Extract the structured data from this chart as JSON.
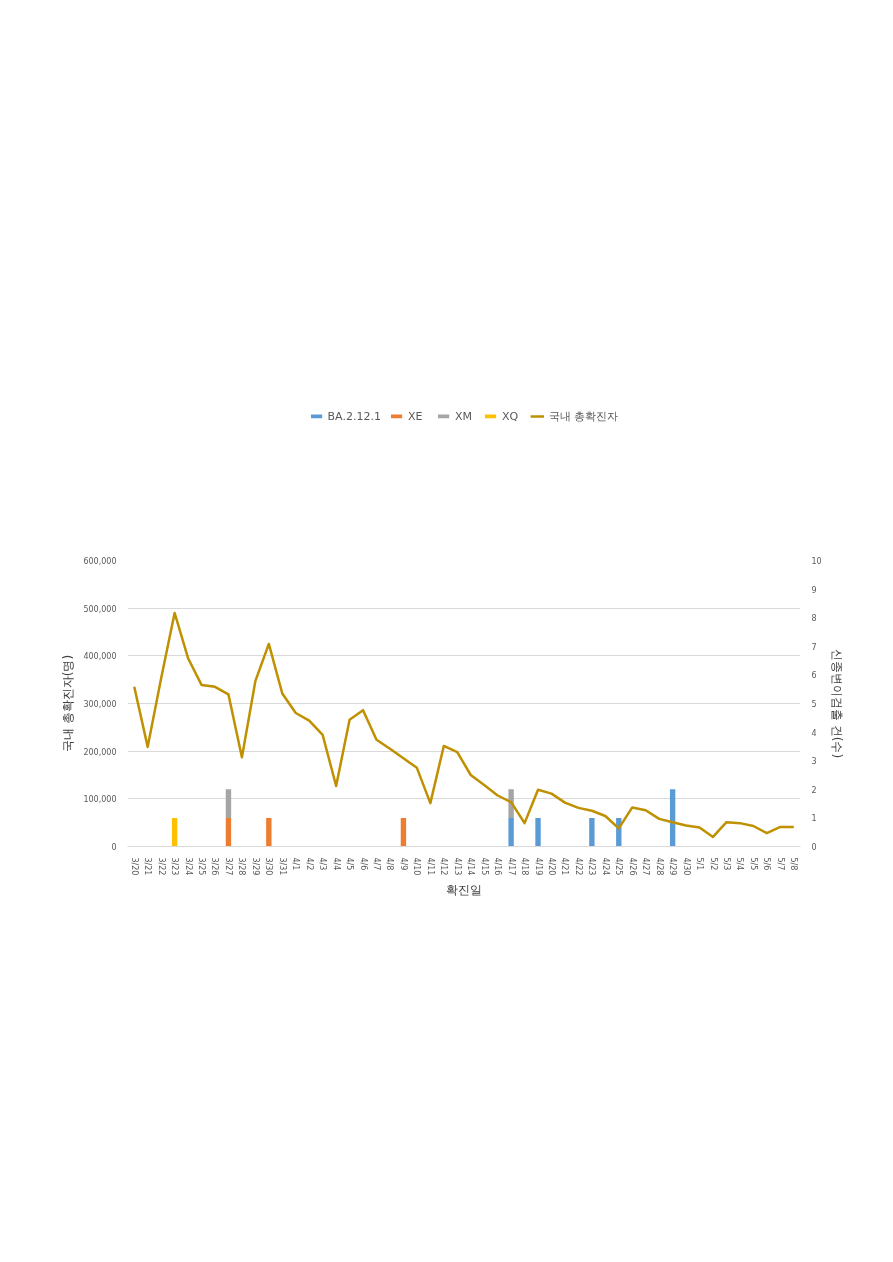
{
  "chart_data": {
    "type": "bar",
    "stacked": true,
    "xlabel": "확진일",
    "ylabel": "국내 총확진자(명)",
    "y2label": "신종변이검출 건(수)",
    "categories": [
      "3/20",
      "3/21",
      "3/22",
      "3/23",
      "3/24",
      "3/25",
      "3/26",
      "3/27",
      "3/28",
      "3/29",
      "3/30",
      "3/31",
      "4/1",
      "4/2",
      "4/3",
      "4/4",
      "4/5",
      "4/6",
      "4/7",
      "4/8",
      "4/9",
      "4/10",
      "4/11",
      "4/12",
      "4/13",
      "4/14",
      "4/15",
      "4/16",
      "4/17",
      "4/18",
      "4/19",
      "4/20",
      "4/21",
      "4/22",
      "4/23",
      "4/24",
      "4/25",
      "4/26",
      "4/27",
      "4/28",
      "4/29",
      "4/30",
      "5/1",
      "5/2",
      "5/3",
      "5/4",
      "5/5",
      "5/6",
      "5/7",
      "5/8"
    ],
    "series": [
      {
        "name": "BA.2.12.1",
        "color": "#5b9bd5",
        "axis": "y2",
        "values": [
          0,
          0,
          0,
          0,
          0,
          0,
          0,
          0,
          0,
          0,
          0,
          0,
          0,
          0,
          0,
          0,
          0,
          0,
          0,
          0,
          0,
          0,
          0,
          0,
          0,
          0,
          0,
          0,
          1,
          0,
          1,
          0,
          0,
          0,
          1,
          0,
          1,
          0,
          0,
          0,
          2,
          0,
          0,
          0,
          0,
          0,
          0,
          0,
          0,
          0
        ]
      },
      {
        "name": "XE",
        "color": "#ed7d31",
        "axis": "y2",
        "values": [
          0,
          0,
          0,
          0,
          0,
          0,
          0,
          1,
          0,
          0,
          1,
          0,
          0,
          0,
          0,
          0,
          0,
          0,
          0,
          0,
          1,
          0,
          0,
          0,
          0,
          0,
          0,
          0,
          0,
          0,
          0,
          0,
          0,
          0,
          0,
          0,
          0,
          0,
          0,
          0,
          0,
          0,
          0,
          0,
          0,
          0,
          0,
          0,
          0,
          0
        ]
      },
      {
        "name": "XM",
        "color": "#a5a5a5",
        "axis": "y2",
        "values": [
          0,
          0,
          0,
          0,
          0,
          0,
          0,
          1,
          0,
          0,
          0,
          0,
          0,
          0,
          0,
          0,
          0,
          0,
          0,
          0,
          0,
          0,
          0,
          0,
          0,
          0,
          0,
          0,
          1,
          0,
          0,
          0,
          0,
          0,
          0,
          0,
          0,
          0,
          0,
          0,
          0,
          0,
          0,
          0,
          0,
          0,
          0,
          0,
          0,
          0
        ]
      },
      {
        "name": "XQ",
        "color": "#ffc000",
        "axis": "y2",
        "values": [
          0,
          0,
          0,
          1,
          0,
          0,
          0,
          0,
          0,
          0,
          0,
          0,
          0,
          0,
          0,
          0,
          0,
          0,
          0,
          0,
          0,
          0,
          0,
          0,
          0,
          0,
          0,
          0,
          0,
          0,
          0,
          0,
          0,
          0,
          0,
          0,
          0,
          0,
          0,
          0,
          0,
          0,
          0,
          0,
          0,
          0,
          0,
          0,
          0,
          0
        ]
      },
      {
        "name": "국내 총확진자",
        "type": "line",
        "color": "#bf9000",
        "values": [
          335000,
          209000,
          353000,
          490000,
          395000,
          339000,
          335000,
          319000,
          187000,
          347000,
          425000,
          321000,
          280000,
          264000,
          234000,
          127000,
          266000,
          286000,
          224000,
          205000,
          185000,
          165000,
          91000,
          211000,
          198000,
          150000,
          129000,
          107000,
          93000,
          49000,
          119000,
          111000,
          92000,
          81000,
          75000,
          64000,
          38000,
          82000,
          76000,
          58000,
          51000,
          44000,
          40000,
          20000,
          51000,
          49000,
          43000,
          28000,
          41000,
          41000
        ]
      }
    ],
    "ylim": [
      0,
      600000
    ],
    "yticks": [
      0,
      {
        "value": 100000,
        "label": "100,000"
      },
      {
        "value": 200000,
        "label": "200,000"
      },
      {
        "value": 300000,
        "label": "300,000"
      },
      {
        "value": 400000,
        "label": "400,000"
      },
      {
        "value": 500000,
        "label": "500,000"
      },
      {
        "value": 600000,
        "label": "600,000"
      }
    ],
    "y2lim": [
      0,
      10
    ],
    "y2ticks": [
      0,
      1,
      2,
      3,
      4,
      5,
      6,
      7,
      8,
      9,
      10
    ],
    "grid": "y",
    "legend": "top"
  }
}
